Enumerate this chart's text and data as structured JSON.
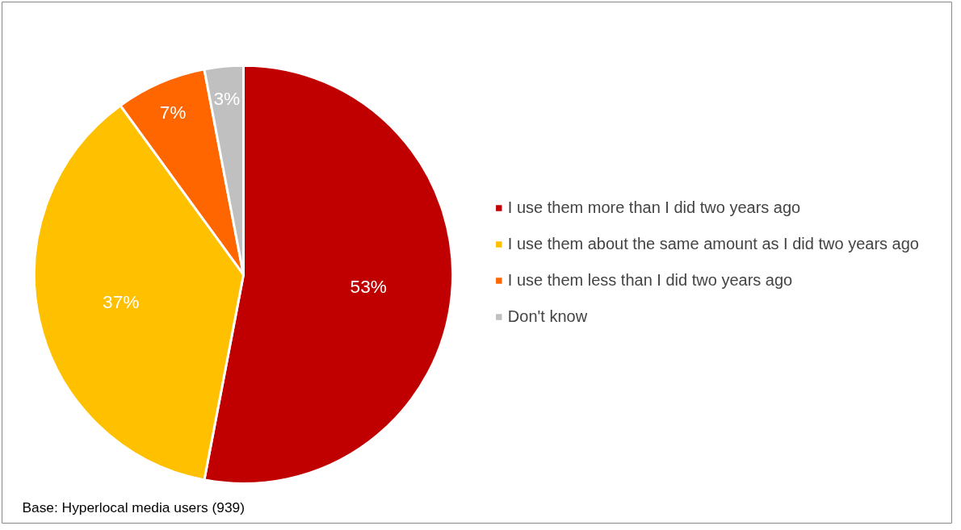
{
  "chart_data": {
    "type": "pie",
    "categories": [
      "I use them more than I did two years ago",
      "I use them about the same amount as I did two years ago",
      "I use them less than I did two years ago",
      "Don't know"
    ],
    "values": [
      53,
      37,
      7,
      3
    ],
    "colors": [
      "#c00000",
      "#ffc000",
      "#ff6600",
      "#c0c0c0"
    ],
    "value_labels": [
      "53%",
      "37%",
      "7%",
      "3%"
    ],
    "legend": "right",
    "annotations": [
      "Base: Hyperlocal media users (939)"
    ]
  }
}
